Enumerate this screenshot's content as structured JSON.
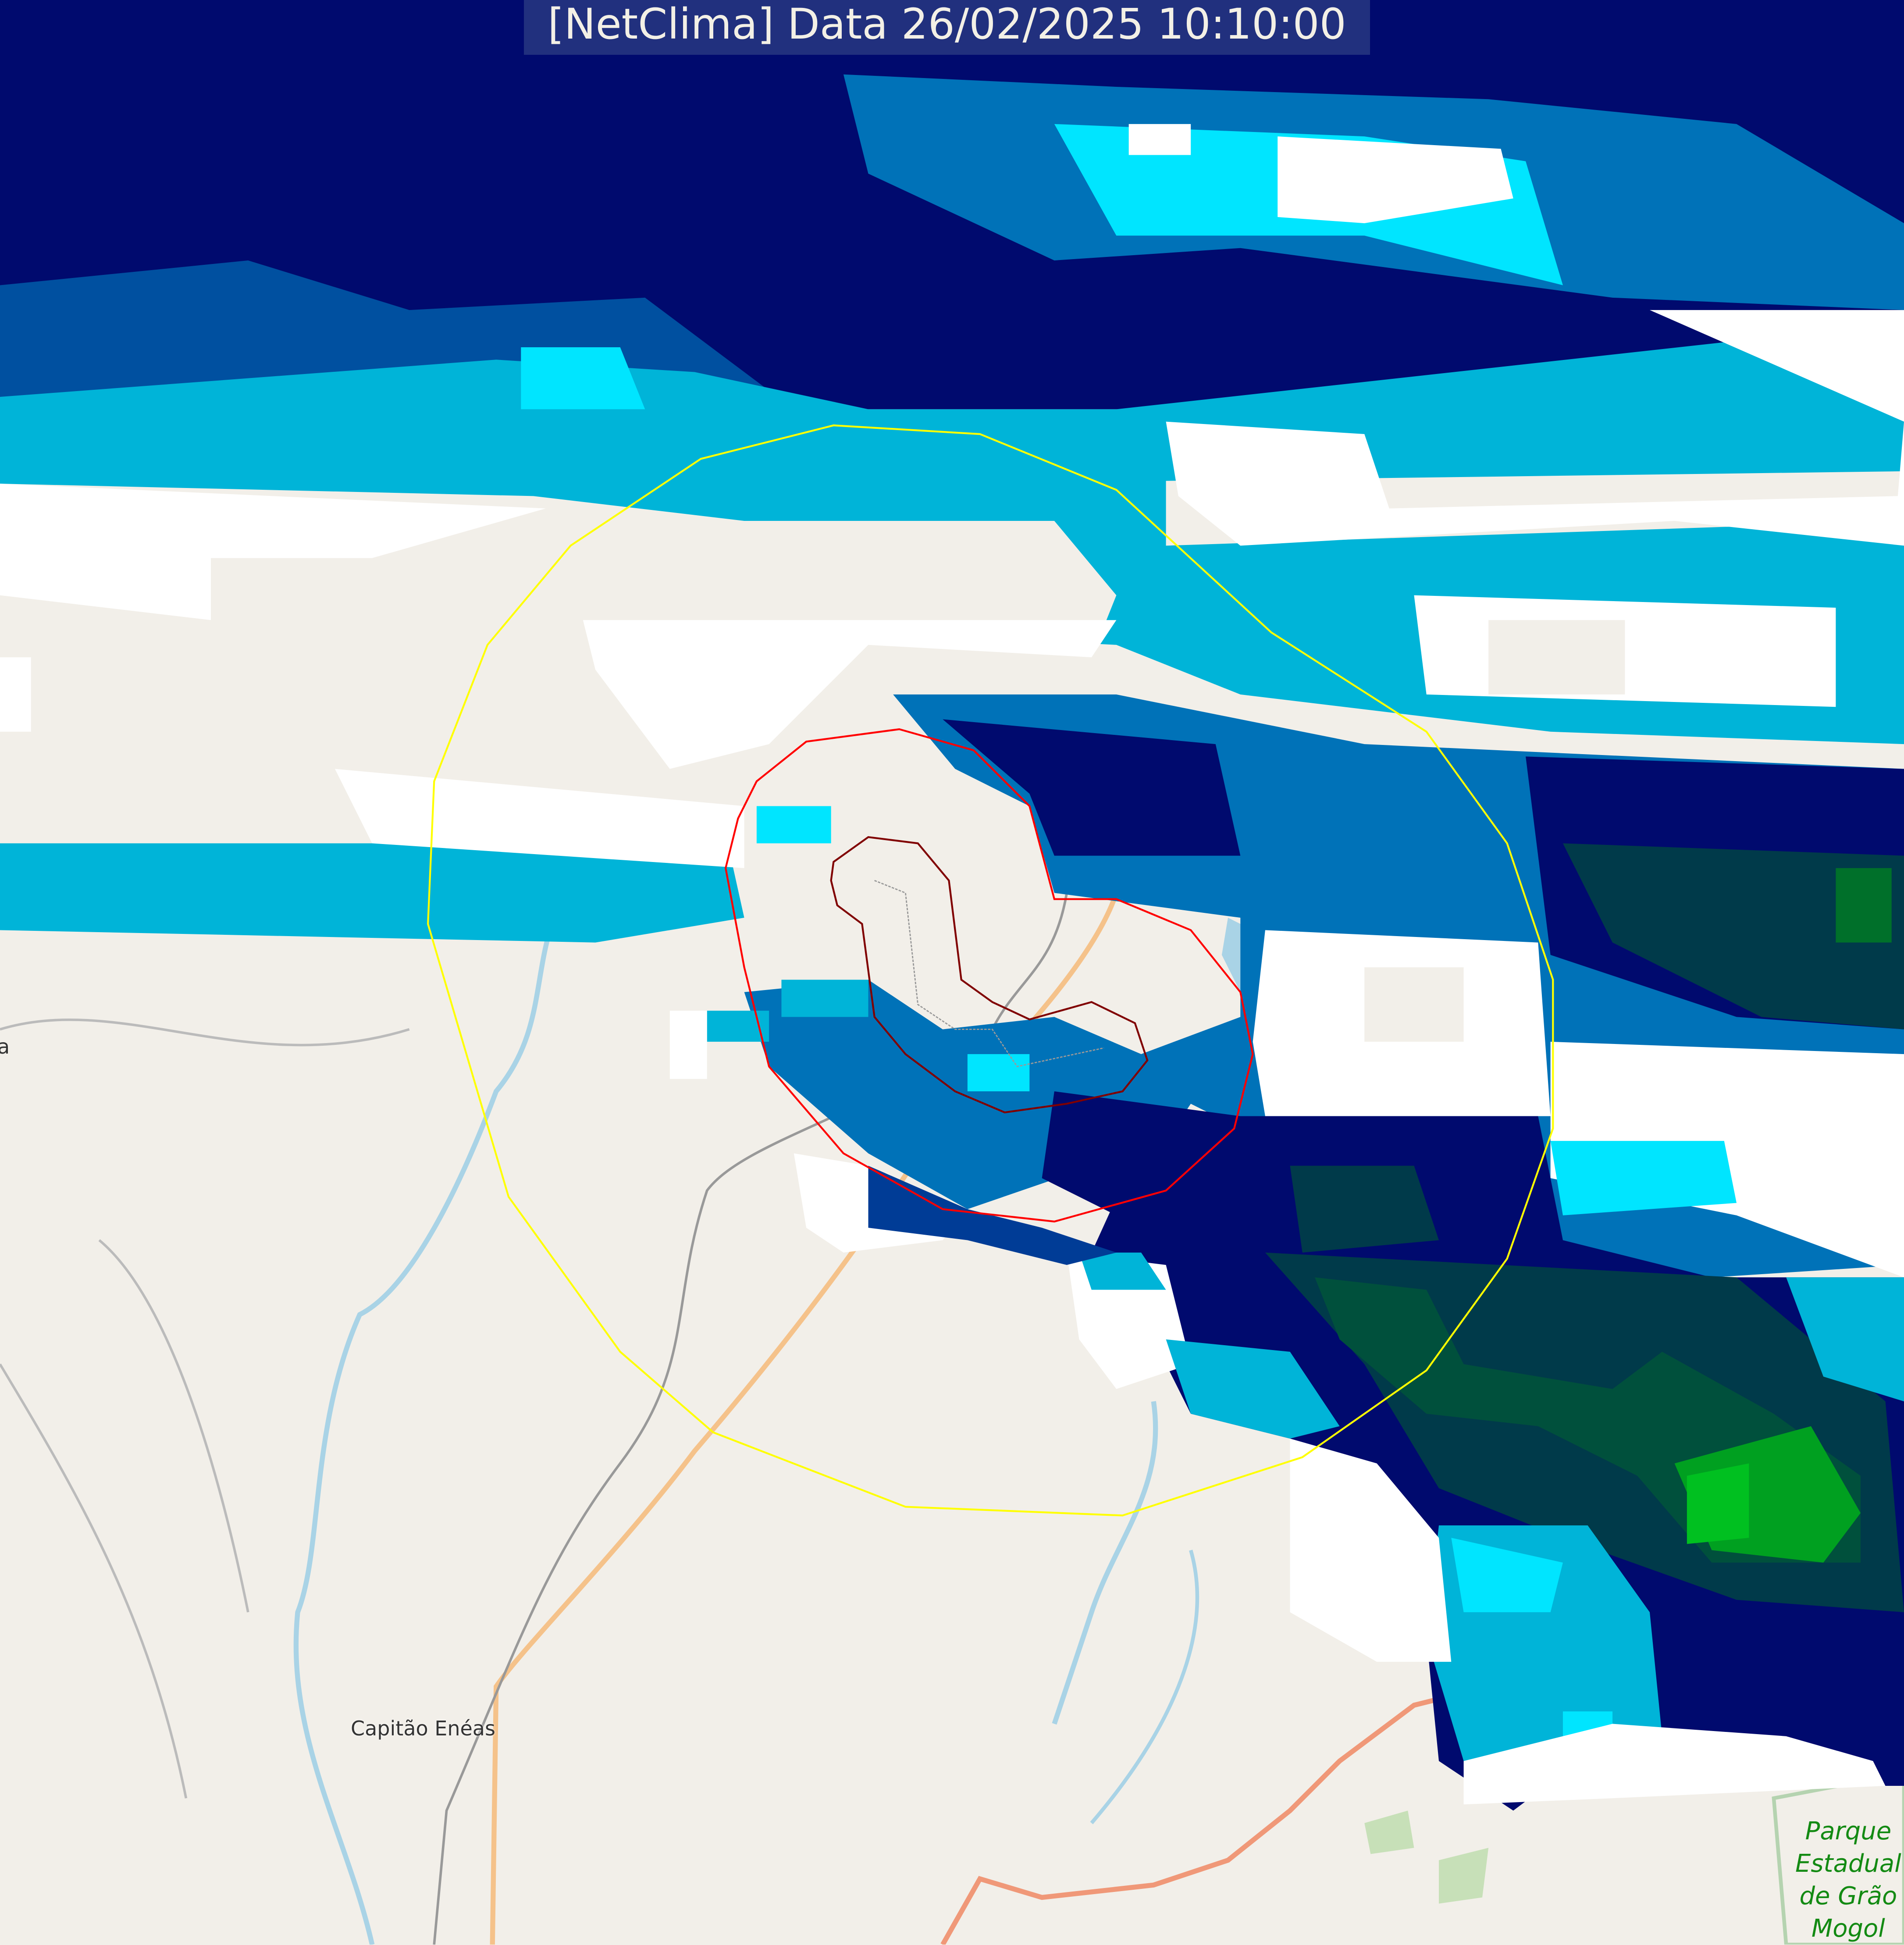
{
  "header": {
    "title": "[NetClima] Data 26/02/2025 10:10:00"
  },
  "map": {
    "places": [
      {
        "name": "Capitão Enéas"
      },
      {
        "name": "a"
      }
    ],
    "park": {
      "line1": "Parque",
      "line2": "Estadual",
      "line3": "de Grão",
      "line4": "Mogol"
    },
    "rings": [
      {
        "color": "#ffff00"
      },
      {
        "color": "#ff0000"
      },
      {
        "color": "#800000"
      }
    ],
    "radar_colors": [
      "#ffffff",
      "#00e5ff",
      "#00b4d8",
      "#0072b8",
      "#003c96",
      "#000a6e",
      "#003a4a",
      "#00a020"
    ],
    "base_color": "#f2efe9"
  }
}
